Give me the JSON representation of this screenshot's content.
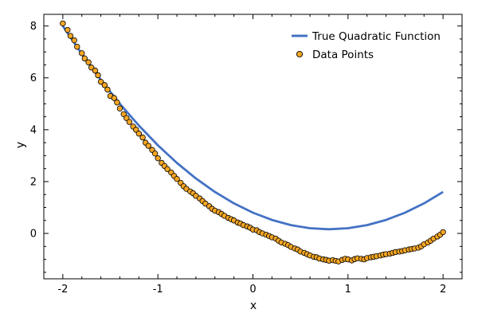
{
  "chart_data": {
    "type": "scatter",
    "title": "",
    "xlabel": "x",
    "ylabel": "y",
    "xlim": [
      -2.2,
      2.2
    ],
    "ylim": [
      -1.75,
      8.45
    ],
    "xticks": [
      -2,
      -1,
      0,
      1,
      2
    ],
    "yticks": [
      0,
      2,
      4,
      6,
      8
    ],
    "grid": false,
    "legend_position": "top-right",
    "colors": {
      "line": "#4472c4",
      "points_fill": "#f5a623",
      "points_edge": "#000000"
    },
    "series": [
      {
        "name": "True Quadratic Function",
        "type": "line",
        "x": [
          -2.0,
          -1.8,
          -1.6,
          -1.4,
          -1.2,
          -1.0,
          -0.8,
          -0.6,
          -0.4,
          -0.2,
          0.0,
          0.2,
          0.4,
          0.6,
          0.8,
          1.0,
          1.2,
          1.4,
          1.6,
          1.8,
          2.0
        ],
        "y": [
          8.0,
          6.92,
          5.92,
          5.0,
          4.16,
          3.4,
          2.72,
          2.12,
          1.6,
          1.16,
          0.8,
          0.52,
          0.32,
          0.2,
          0.16,
          0.2,
          0.32,
          0.52,
          0.8,
          1.16,
          1.6
        ]
      },
      {
        "name": "Data Points",
        "type": "scatter",
        "x": [
          -2.0,
          -1.95,
          -1.92,
          -1.88,
          -1.85,
          -1.8,
          -1.77,
          -1.73,
          -1.7,
          -1.66,
          -1.63,
          -1.6,
          -1.56,
          -1.53,
          -1.5,
          -1.46,
          -1.43,
          -1.4,
          -1.36,
          -1.33,
          -1.3,
          -1.26,
          -1.23,
          -1.2,
          -1.16,
          -1.13,
          -1.1,
          -1.06,
          -1.03,
          -1.0,
          -0.96,
          -0.93,
          -0.9,
          -0.86,
          -0.83,
          -0.8,
          -0.76,
          -0.73,
          -0.7,
          -0.66,
          -0.63,
          -0.6,
          -0.56,
          -0.53,
          -0.5,
          -0.46,
          -0.43,
          -0.4,
          -0.36,
          -0.33,
          -0.3,
          -0.26,
          -0.23,
          -0.2,
          -0.16,
          -0.13,
          -0.1,
          -0.06,
          -0.03,
          0.0,
          0.04,
          0.07,
          0.1,
          0.14,
          0.17,
          0.2,
          0.24,
          0.27,
          0.3,
          0.34,
          0.37,
          0.4,
          0.44,
          0.47,
          0.5,
          0.54,
          0.57,
          0.6,
          0.64,
          0.67,
          0.7,
          0.74,
          0.77,
          0.8,
          0.84,
          0.87,
          0.9,
          0.94,
          0.97,
          1.0,
          1.04,
          1.07,
          1.1,
          1.14,
          1.17,
          1.2,
          1.24,
          1.27,
          1.3,
          1.34,
          1.37,
          1.4,
          1.44,
          1.47,
          1.5,
          1.54,
          1.57,
          1.6,
          1.64,
          1.67,
          1.7,
          1.74,
          1.77,
          1.8,
          1.84,
          1.87,
          1.9,
          1.94,
          1.97,
          2.0
        ],
        "y": [
          8.1,
          7.85,
          7.62,
          7.45,
          7.2,
          6.95,
          6.75,
          6.6,
          6.4,
          6.28,
          6.1,
          5.85,
          5.72,
          5.55,
          5.3,
          5.22,
          5.05,
          4.82,
          4.6,
          4.45,
          4.3,
          4.12,
          4.0,
          3.85,
          3.7,
          3.5,
          3.38,
          3.22,
          3.08,
          2.9,
          2.72,
          2.6,
          2.48,
          2.35,
          2.22,
          2.1,
          1.95,
          1.82,
          1.72,
          1.62,
          1.55,
          1.45,
          1.35,
          1.25,
          1.15,
          1.05,
          0.95,
          0.88,
          0.82,
          0.75,
          0.68,
          0.6,
          0.55,
          0.5,
          0.42,
          0.38,
          0.32,
          0.27,
          0.22,
          0.15,
          0.12,
          0.05,
          0.0,
          -0.05,
          -0.1,
          -0.15,
          -0.2,
          -0.28,
          -0.35,
          -0.4,
          -0.45,
          -0.52,
          -0.58,
          -0.62,
          -0.7,
          -0.75,
          -0.8,
          -0.85,
          -0.9,
          -0.92,
          -0.97,
          -1.0,
          -1.02,
          -1.05,
          -1.03,
          -1.06,
          -1.08,
          -1.02,
          -0.98,
          -1.0,
          -1.04,
          -0.99,
          -0.96,
          -0.98,
          -1.0,
          -0.95,
          -0.92,
          -0.9,
          -0.88,
          -0.85,
          -0.82,
          -0.8,
          -0.78,
          -0.75,
          -0.72,
          -0.7,
          -0.68,
          -0.65,
          -0.62,
          -0.6,
          -0.58,
          -0.55,
          -0.5,
          -0.42,
          -0.35,
          -0.28,
          -0.2,
          -0.12,
          -0.05,
          0.05
        ]
      }
    ]
  }
}
